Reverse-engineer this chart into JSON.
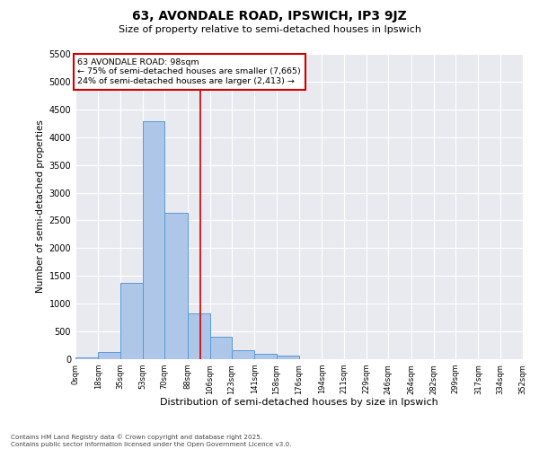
{
  "title_line1": "63, AVONDALE ROAD, IPSWICH, IP3 9JZ",
  "title_line2": "Size of property relative to semi-detached houses in Ipswich",
  "xlabel": "Distribution of semi-detached houses by size in Ipswich",
  "ylabel": "Number of semi-detached properties",
  "property_label": "63 AVONDALE ROAD: 98sqm",
  "pct_smaller": 75,
  "pct_larger": 24,
  "n_smaller": 7665,
  "n_larger": 2413,
  "bin_edges": [
    0,
    18,
    35,
    53,
    70,
    88,
    106,
    123,
    141,
    158,
    176,
    194,
    211,
    229,
    246,
    264,
    282,
    299,
    317,
    334,
    352
  ],
  "bin_labels": [
    "0sqm",
    "18sqm",
    "35sqm",
    "53sqm",
    "70sqm",
    "88sqm",
    "106sqm",
    "123sqm",
    "141sqm",
    "158sqm",
    "176sqm",
    "194sqm",
    "211sqm",
    "229sqm",
    "246sqm",
    "264sqm",
    "282sqm",
    "299sqm",
    "317sqm",
    "334sqm",
    "352sqm"
  ],
  "counts": [
    25,
    130,
    1380,
    4280,
    2640,
    820,
    400,
    155,
    100,
    70,
    0,
    0,
    0,
    0,
    0,
    0,
    0,
    0,
    0,
    0
  ],
  "bar_color": "#aec6e8",
  "bar_edge_color": "#5b9bd5",
  "vline_color": "#cc0000",
  "vline_x": 98,
  "annotation_box_color": "#cc0000",
  "ylim": [
    0,
    5500
  ],
  "yticks": [
    0,
    500,
    1000,
    1500,
    2000,
    2500,
    3000,
    3500,
    4000,
    4500,
    5000,
    5500
  ],
  "bg_color": "#e8eaf0",
  "grid_color": "#ffffff",
  "footer_text": "Contains HM Land Registry data © Crown copyright and database right 2025.\nContains public sector information licensed under the Open Government Licence v3.0."
}
